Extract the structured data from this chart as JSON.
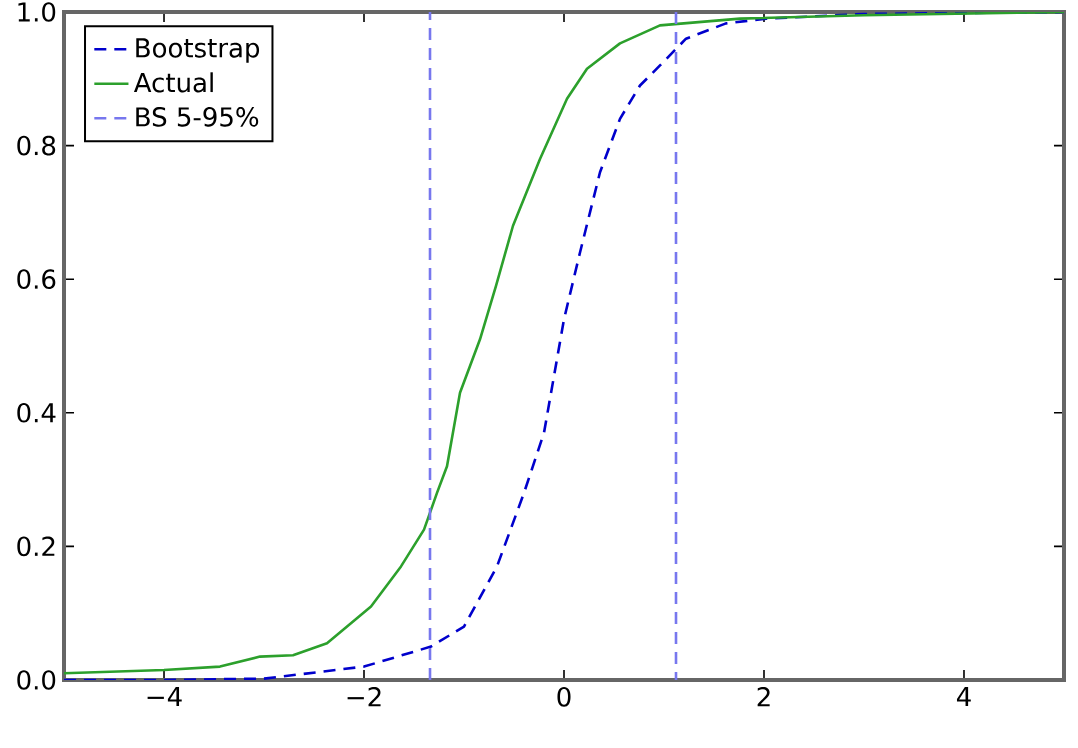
{
  "chart_data": {
    "type": "line",
    "xlim": [
      -5,
      5
    ],
    "ylim": [
      0,
      1
    ],
    "xticks": [
      {
        "value": -4,
        "label": "−4"
      },
      {
        "value": -2,
        "label": "−2"
      },
      0,
      2,
      4
    ],
    "yticks": [
      {
        "value": 0,
        "label": "0.0"
      },
      {
        "value": 0.2,
        "label": "0.2"
      },
      {
        "value": 0.4,
        "label": "0.4"
      },
      {
        "value": 0.6,
        "label": "0.6"
      },
      {
        "value": 0.8,
        "label": "0.8"
      },
      {
        "value": 1,
        "label": "1.0"
      }
    ],
    "legend": "top left",
    "grid": false,
    "series": [
      {
        "name": "Bootstrap",
        "color": "#0000cc",
        "line_style": "dashed",
        "x": [
          -5,
          -4,
          -3,
          -2,
          -1.33,
          -1,
          -0.67,
          -0.4,
          -0.2,
          0,
          0.16,
          0.36,
          0.56,
          0.76,
          0.96,
          1.22,
          1.62,
          2.02,
          3,
          5
        ],
        "values": [
          0,
          0,
          0.002,
          0.02,
          0.05,
          0.08,
          0.17,
          0.28,
          0.37,
          0.54,
          0.64,
          0.76,
          0.84,
          0.89,
          0.92,
          0.96,
          0.983,
          0.99,
          0.997,
          1
        ]
      },
      {
        "name": "Actual",
        "color": "#2ca02c",
        "line_style": "solid",
        "x": [
          -5,
          -4,
          -3.44,
          -3.04,
          -2.71,
          -2.37,
          -1.93,
          -1.63,
          -1.4,
          -1.27,
          -1.17,
          -1.04,
          -0.84,
          -0.68,
          -0.51,
          -0.24,
          0.03,
          0.23,
          0.56,
          0.96,
          1.36,
          1.76,
          3,
          5
        ],
        "values": [
          0.01,
          0.015,
          0.02,
          0.035,
          0.037,
          0.055,
          0.11,
          0.17,
          0.225,
          0.28,
          0.32,
          0.43,
          0.51,
          0.59,
          0.68,
          0.78,
          0.87,
          0.915,
          0.953,
          0.98,
          0.985,
          0.99,
          0.995,
          1
        ]
      },
      {
        "name": "BS 5-95%",
        "color": "#7777ee",
        "line_style": "dashed",
        "x": [
          -1.34,
          -1.34,
          0,
          1.12,
          1.12
        ],
        "values": [
          0,
          1,
          null,
          1,
          0
        ]
      }
    ]
  }
}
